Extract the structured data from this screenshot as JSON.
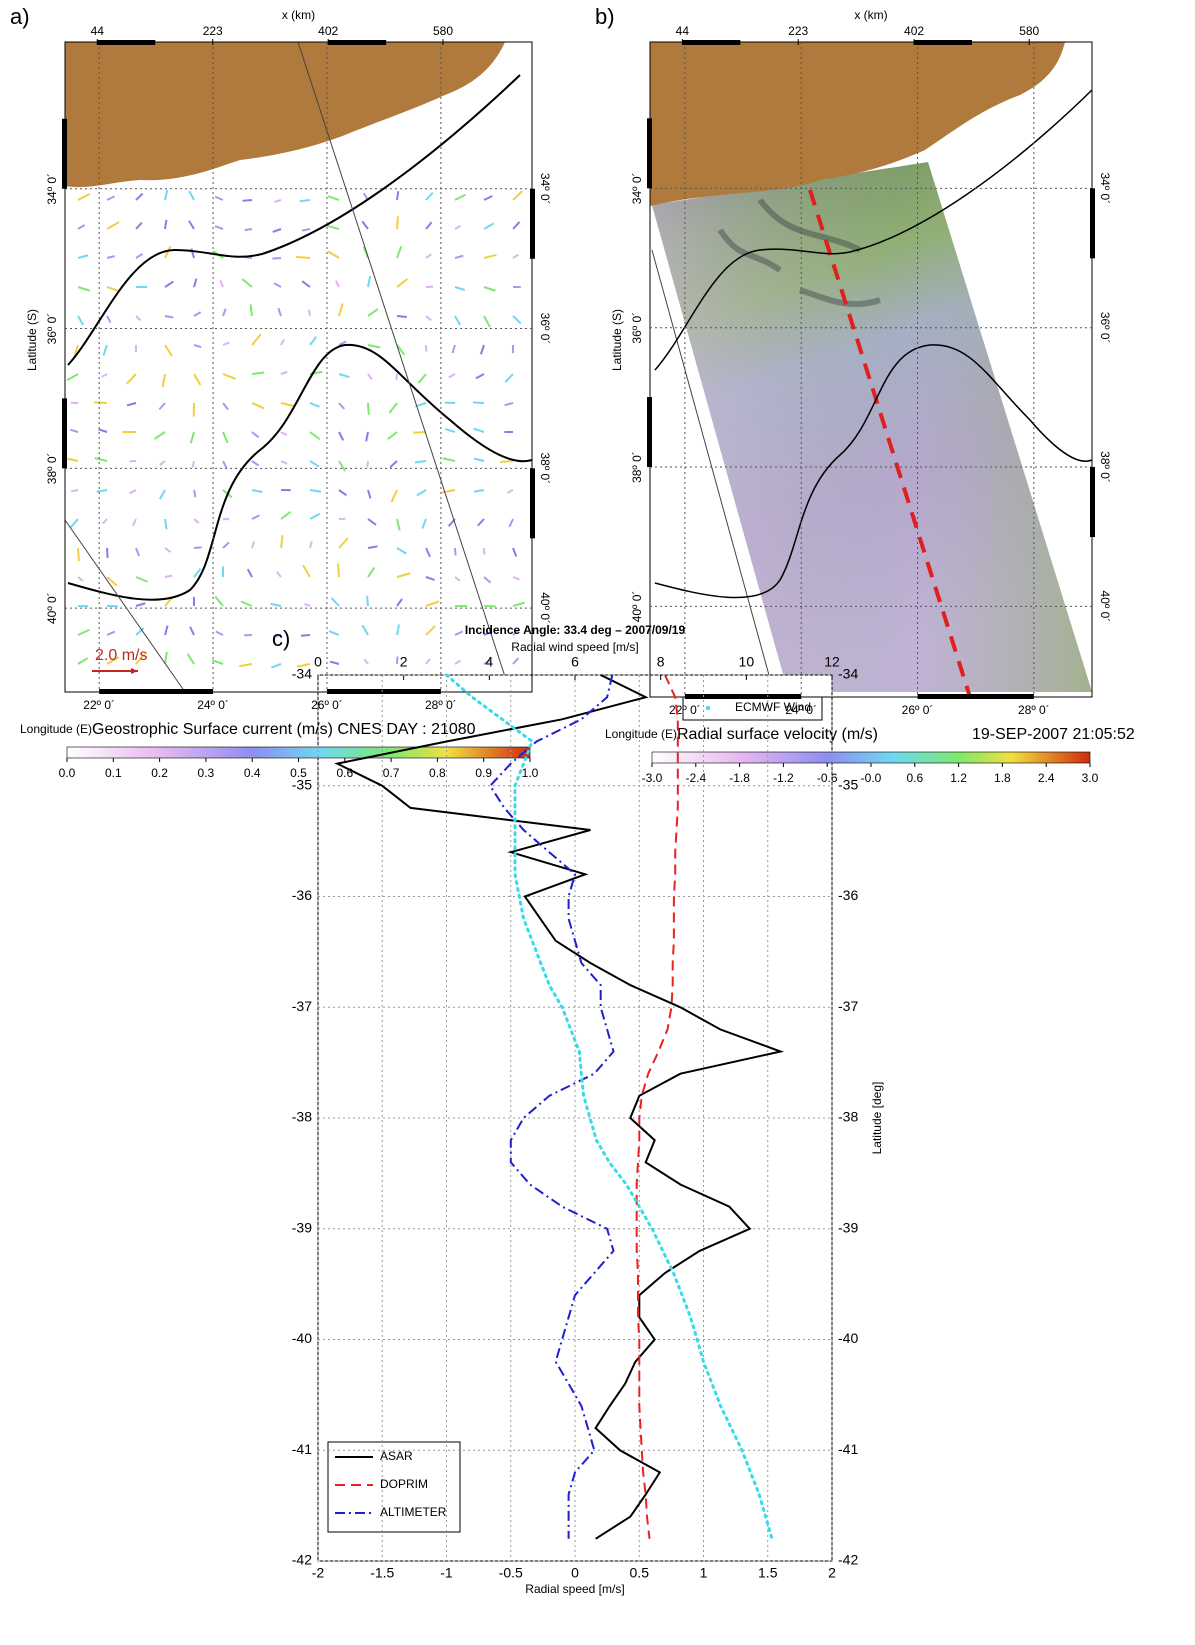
{
  "chart_data": [
    {
      "type": "map",
      "panel_label": "a)",
      "title": "Geostrophic Surface current (m/s) CNES DAY : 21080",
      "xlabel": "Longitude (E)",
      "ylabel": "Latitude (S)",
      "x2label": "x (km)",
      "annotation": "2.0 m/s",
      "xlim": [
        21.4,
        29.6
      ],
      "ylim": [
        -31.9,
        -41.2
      ],
      "xticks": [
        {
          "value": 22,
          "label": "22º 0´"
        },
        {
          "value": 24,
          "label": "24º 0´"
        },
        {
          "value": 26,
          "label": "26º 0´"
        },
        {
          "value": 28,
          "label": "28º 0´"
        }
      ],
      "yticks": [
        {
          "value": -34,
          "label": "34º 0´"
        },
        {
          "value": -36,
          "label": "36º 0´"
        },
        {
          "value": -38,
          "label": "38º 0´"
        },
        {
          "value": -40,
          "label": "40º 0´"
        }
      ],
      "x2lim": [
        -6,
        718
      ],
      "x2ticks": [
        44,
        223,
        402,
        580
      ],
      "colorbar": {
        "lim": [
          0,
          1
        ],
        "ticks": [
          {
            "value": 0,
            "label": "0.0"
          },
          0.1,
          0.2,
          0.3,
          0.4,
          0.5,
          0.6,
          0.7,
          0.8,
          0.9,
          {
            "value": 1,
            "label": "1.0"
          }
        ]
      }
    },
    {
      "type": "map",
      "panel_label": "b)",
      "title": "Radial surface velocity (m/s)",
      "subtitle": "19-SEP-2007 21:05:52",
      "xlabel": "Longitude (E)",
      "ylabel": "Latitude (S)",
      "x2label": "x (km)",
      "xlim": [
        21.4,
        29.0
      ],
      "ylim": [
        -31.9,
        -41.3
      ],
      "xticks": [
        {
          "value": 22,
          "label": "22º 0´"
        },
        {
          "value": 24,
          "label": "24º 0´"
        },
        {
          "value": 26,
          "label": "26º 0´"
        },
        {
          "value": 28,
          "label": "28º 0´"
        }
      ],
      "yticks": [
        {
          "value": -34,
          "label": "34º 0´"
        },
        {
          "value": -36,
          "label": "36º 0´"
        },
        {
          "value": -38,
          "label": "38º 0´"
        },
        {
          "value": -40,
          "label": "40º 0´"
        }
      ],
      "x2lim": [
        -6,
        677
      ],
      "x2ticks": [
        44,
        223,
        402,
        580
      ],
      "colorbar": {
        "lim": [
          -3,
          3
        ],
        "ticks": [
          {
            "value": -3,
            "label": "-3.0"
          },
          -2.4,
          -1.8,
          -1.2,
          -0.6,
          {
            "value": 0,
            "label": "-0.0"
          },
          0.6,
          1.2,
          1.8,
          2.4,
          {
            "value": 3,
            "label": "3.0"
          }
        ]
      }
    },
    {
      "type": "line",
      "panel_label": "c)",
      "title": "Incidence Angle: 33.4 deg – 2007/09/19",
      "xlabel": "Radial speed [m/s]",
      "x2label": "Radial wind speed [m/s]",
      "ylabel": "Latitude [deg]",
      "xlim": [
        -2,
        2
      ],
      "xticks": [
        -2,
        -1.5,
        -1,
        -0.5,
        0,
        0.5,
        1,
        1.5,
        2
      ],
      "x2lim": [
        0,
        12
      ],
      "x2ticks": [
        0,
        2,
        4,
        6,
        8,
        10,
        12
      ],
      "ylim": [
        -34,
        -42
      ],
      "yticks": [
        -34,
        -35,
        -36,
        -37,
        -38,
        -39,
        -40,
        -41,
        -42
      ],
      "grid": true,
      "y": [
        -34,
        -34.2,
        -34.4,
        -34.6,
        -34.8,
        -35,
        -35.2,
        -35.4,
        -35.6,
        -35.8,
        -36,
        -36.2,
        -36.4,
        -36.6,
        -36.8,
        -37,
        -37.2,
        -37.4,
        -37.6,
        -37.8,
        -38,
        -38.2,
        -38.4,
        -38.6,
        -38.8,
        -39,
        -39.2,
        -39.4,
        -39.6,
        -39.8,
        -40,
        -40.2,
        -40.4,
        -40.6,
        -40.8,
        -41,
        -41.2,
        -41.4,
        -41.6,
        -41.8
      ],
      "series": [
        {
          "name": "ASAR",
          "color": "#000000",
          "style": "solid",
          "values": [
            0.2,
            0.55,
            -0.1,
            -1.0,
            -1.85,
            -1.5,
            -1.28,
            0.12,
            -0.5,
            0.08,
            -0.39,
            -0.27,
            -0.15,
            0.12,
            0.43,
            0.82,
            1.13,
            1.6,
            0.82,
            0.5,
            0.43,
            0.62,
            0.55,
            0.82,
            1.2,
            1.36,
            0.97,
            0.7,
            0.5,
            0.5,
            0.62,
            0.47,
            0.39,
            0.27,
            0.16,
            0.35,
            0.66,
            0.55,
            0.43,
            0.16
          ]
        },
        {
          "name": "DOPRIM",
          "color": "#e8231f",
          "style": "dashed",
          "values": [
            0.7,
            0.78,
            0.8,
            0.8,
            0.8,
            0.8,
            0.8,
            0.79,
            0.78,
            0.78,
            0.77,
            0.77,
            0.77,
            0.76,
            0.76,
            0.75,
            0.72,
            0.65,
            0.57,
            0.52,
            0.5,
            0.5,
            0.49,
            0.48,
            0.48,
            0.48,
            0.48,
            0.49,
            0.49,
            0.49,
            0.5,
            0.5,
            0.5,
            0.5,
            0.51,
            0.52,
            0.53,
            0.55,
            0.56,
            0.58
          ]
        },
        {
          "name": "ALTIMETER",
          "color": "#1f1fcf",
          "style": "dashdot",
          "values": [
            0.29,
            0.25,
            0.05,
            -0.3,
            -0.5,
            -0.66,
            -0.55,
            -0.4,
            -0.2,
            0,
            -0.05,
            -0.05,
            0,
            0.05,
            0.2,
            0.2,
            0.25,
            0.3,
            0.15,
            -0.2,
            -0.4,
            -0.5,
            -0.5,
            -0.35,
            -0.1,
            0.25,
            0.3,
            0.15,
            0,
            -0.05,
            -0.1,
            -0.15,
            -0.05,
            0.05,
            0.1,
            0.15,
            0,
            -0.05,
            -0.05,
            -0.05
          ]
        },
        {
          "name": "ECMWF Wind",
          "color": "#33dde8",
          "style": "dotted",
          "axis": "x2",
          "values": [
            3.0,
            3.6,
            4.3,
            5.0,
            4.8,
            4.6,
            4.6,
            4.6,
            4.6,
            4.6,
            4.7,
            4.8,
            5.0,
            5.2,
            5.4,
            5.7,
            5.9,
            6.1,
            6.15,
            6.2,
            6.35,
            6.5,
            6.8,
            7.2,
            7.5,
            7.8,
            8.05,
            8.3,
            8.5,
            8.7,
            8.85,
            9.0,
            9.2,
            9.4,
            9.65,
            9.9,
            10.1,
            10.3,
            10.45,
            10.6
          ]
        }
      ]
    }
  ]
}
